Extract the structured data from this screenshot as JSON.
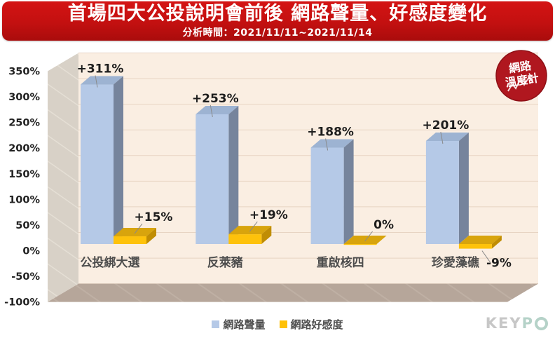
{
  "header": {
    "title": "首場四大公投說明會前後 網路聲量、好感度變化",
    "subtitle": "分析時間：2021/11/11~2021/11/14",
    "bg_color": "#c31010"
  },
  "badge": {
    "line1": "網路",
    "line2": "溫度計",
    "color": "#b0171f"
  },
  "legend": [
    {
      "label": "網路聲量",
      "color": "#b5c9e7"
    },
    {
      "label": "網路好感度",
      "color": "#ffc107"
    }
  ],
  "footer_logo": {
    "gray": "KEY",
    "teal": "P"
  },
  "chart_data": {
    "type": "bar",
    "title": "首場四大公投說明會前後 網路聲量、好感度變化",
    "subtitle": "分析時間：2021/11/11~2021/11/14",
    "categories": [
      "公投綁大選",
      "反萊豬",
      "重啟核四",
      "珍愛藻礁"
    ],
    "series": [
      {
        "name": "網路聲量",
        "values": [
          311,
          253,
          188,
          201
        ],
        "labels": [
          "+311%",
          "+253%",
          "+188%",
          "+201%"
        ],
        "color_front": "#b5c9e7",
        "color_side": "#76849c",
        "color_top": "#9db3d2"
      },
      {
        "name": "網路好感度",
        "values": [
          15,
          19,
          0,
          -9
        ],
        "labels": [
          "+15%",
          "+19%",
          "0%",
          "-9%"
        ],
        "color_front": "#fec20b",
        "color_side": "#c08d04",
        "color_top": "#d8a40d"
      }
    ],
    "ylabel": "",
    "ylim": [
      -100,
      350
    ],
    "ytick_values": [
      350,
      300,
      250,
      200,
      150,
      100,
      50,
      0,
      -50,
      -100
    ],
    "yticks": [
      "350%",
      "300%",
      "250%",
      "200%",
      "150%",
      "100%",
      "50%",
      "0%",
      "-50%",
      "-100%"
    ],
    "grid": true,
    "legend_position": "bottom",
    "style": "3d-bars",
    "wall_color": "#faeee2",
    "side_wall_color": "#d8d1c7",
    "floor_color": "#b6a69a",
    "gridline_color": "#e7d4c3"
  }
}
